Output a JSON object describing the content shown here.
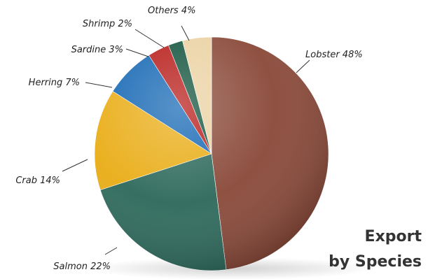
{
  "chart_data": {
    "type": "pie",
    "title": [
      "Export",
      "by Species"
    ],
    "slices": [
      {
        "label": "Lobster",
        "value": 48,
        "text": "Lobster 48%",
        "color": "#8a4a3a"
      },
      {
        "label": "Salmon",
        "value": 22,
        "text": "Salmon 22%",
        "color": "#2e6a5c"
      },
      {
        "label": "Crab",
        "value": 14,
        "text": "Crab 14%",
        "color": "#e9ad17"
      },
      {
        "label": "Herring",
        "value": 7,
        "text": "Herring 7%",
        "color": "#1668b4"
      },
      {
        "label": "Sardine",
        "value": 3,
        "text": "Sardine 3%",
        "color": "#b71d1a"
      },
      {
        "label": "Shrimp",
        "value": 2,
        "text": "Shrimp 2%",
        "color": "#14543e"
      },
      {
        "label": "Others",
        "value": 4,
        "text": "Others 4%",
        "color": "#ebd2a3"
      }
    ]
  }
}
